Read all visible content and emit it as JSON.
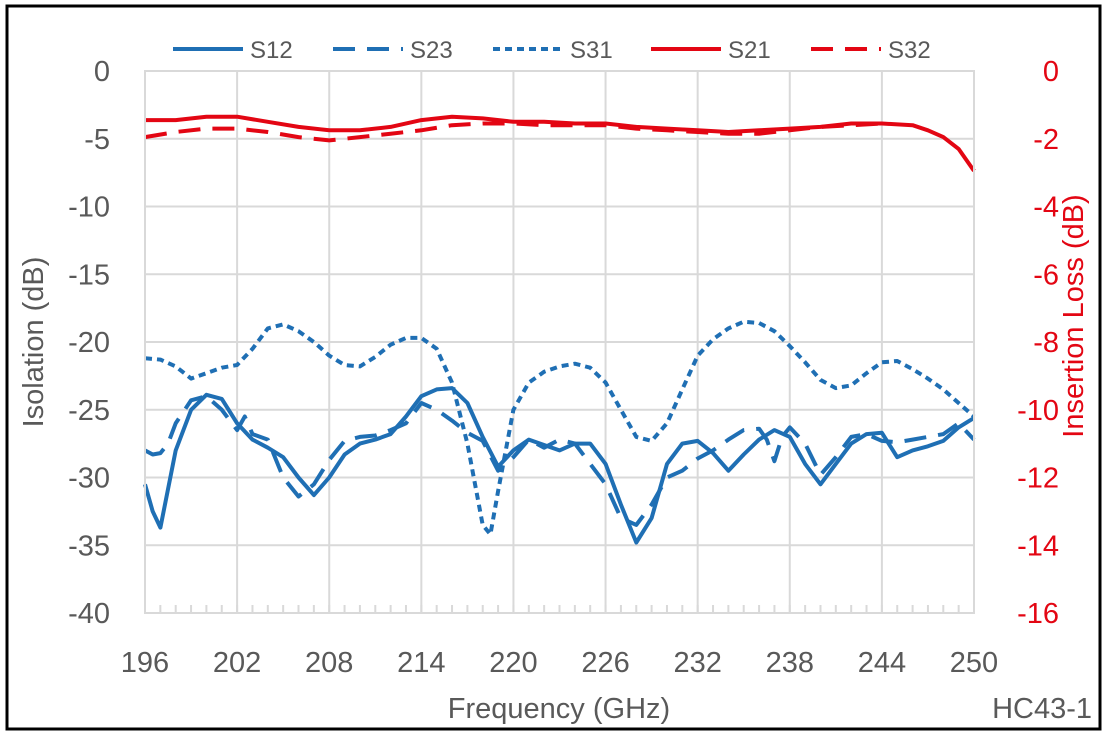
{
  "chart_data": {
    "type": "line",
    "xlabel": "Frequency (GHz)",
    "ylabel_left": "Isolation (dB)",
    "ylabel_right": "Insertion Loss (dB)",
    "figure_id": "HC43-1",
    "xlim": [
      196,
      250
    ],
    "ylim_left": [
      -40,
      0
    ],
    "ylim_right": [
      -16,
      0
    ],
    "x_ticks": [
      196,
      202,
      208,
      214,
      220,
      226,
      232,
      238,
      244,
      250
    ],
    "y_ticks_left": [
      0,
      -5,
      -10,
      -15,
      -20,
      -25,
      -30,
      -35,
      -40
    ],
    "y_ticks_right": [
      0,
      -2,
      -4,
      -6,
      -8,
      -10,
      -12,
      -14,
      -16
    ],
    "grid": true,
    "legend_position": "top",
    "colors": {
      "isolation": "#1f6fb4",
      "insertion_loss": "#e30613",
      "text": "#595959",
      "grid": "#d9d9d9"
    },
    "series": [
      {
        "name": "S12",
        "axis": "left",
        "dash": "solid",
        "x": [
          196,
          196.5,
          197,
          198,
          199,
          200,
          201,
          202,
          203,
          204,
          205,
          206,
          207,
          208,
          209,
          210,
          211,
          212,
          213,
          214,
          215,
          216,
          217,
          218,
          219,
          220,
          221,
          222,
          223,
          224,
          225,
          226,
          227,
          228,
          229,
          230,
          231,
          232,
          233,
          234,
          235,
          236,
          237,
          238,
          239,
          240,
          241,
          242,
          243,
          244,
          245,
          246,
          247,
          248,
          249,
          250
        ],
        "y": [
          -30.5,
          -32.5,
          -33.7,
          -28,
          -25,
          -23.9,
          -24.2,
          -26,
          -27.2,
          -27.8,
          -28.5,
          -30,
          -31.3,
          -30,
          -28.3,
          -27.5,
          -27.2,
          -26.8,
          -25.5,
          -24,
          -23.5,
          -23.4,
          -24.5,
          -27,
          -29.2,
          -28,
          -27.2,
          -27.6,
          -28,
          -27.5,
          -27.5,
          -29,
          -32,
          -34.8,
          -33,
          -29,
          -27.5,
          -27.3,
          -28.2,
          -29.5,
          -28.3,
          -27.2,
          -26.5,
          -27,
          -29,
          -30.5,
          -29,
          -27.5,
          -26.8,
          -26.7,
          -28.5,
          -28,
          -27.7,
          -27.3,
          -26.3,
          -25.6
        ]
      },
      {
        "name": "S23",
        "axis": "left",
        "dash": "long",
        "x": [
          196,
          196.5,
          197,
          197.5,
          198,
          199,
          200,
          201,
          202,
          202.5,
          203,
          204,
          205,
          206,
          207,
          208,
          209,
          210,
          211,
          212,
          213,
          214,
          215,
          216,
          217,
          218,
          219,
          220,
          221,
          222,
          223,
          224,
          225,
          226,
          227,
          228,
          229,
          230,
          231,
          232,
          233,
          234,
          235,
          236,
          236.5,
          237,
          237.5,
          238,
          239,
          240,
          241,
          242,
          243,
          244,
          245,
          246,
          247,
          248,
          249,
          250
        ],
        "y": [
          -28,
          -28.3,
          -28.2,
          -27.5,
          -26,
          -24.3,
          -24,
          -25,
          -26.5,
          -25.5,
          -26.8,
          -27.2,
          -30,
          -31.4,
          -30.5,
          -28.7,
          -27.3,
          -27,
          -26.9,
          -26.5,
          -26,
          -24.5,
          -25,
          -25.8,
          -26.7,
          -27.3,
          -29.5,
          -28.5,
          -27.2,
          -27.8,
          -27.2,
          -27.5,
          -29,
          -30.5,
          -33,
          -33.5,
          -32,
          -30,
          -29.5,
          -28.6,
          -28,
          -27.2,
          -26.5,
          -26.4,
          -27.2,
          -28.8,
          -27,
          -26.3,
          -27.5,
          -29.8,
          -28.5,
          -27,
          -26.8,
          -27.3,
          -27.4,
          -27.2,
          -27,
          -26.8,
          -26,
          -27.2
        ]
      },
      {
        "name": "S31",
        "axis": "left",
        "dash": "short",
        "x": [
          196,
          197,
          198,
          199,
          200,
          201,
          202,
          203,
          204,
          205,
          206,
          207,
          208,
          209,
          210,
          211,
          212,
          213,
          214,
          215,
          216,
          217,
          218,
          218.5,
          219,
          220,
          221,
          222,
          223,
          224,
          225,
          226,
          227,
          228,
          229,
          230,
          231,
          232,
          233,
          234,
          235,
          236,
          237,
          238,
          239,
          240,
          241,
          242,
          243,
          244,
          245,
          246,
          247,
          248,
          249,
          250
        ],
        "y": [
          -21.2,
          -21.3,
          -21.8,
          -22.7,
          -22.3,
          -21.9,
          -21.7,
          -20.5,
          -19,
          -18.7,
          -19.2,
          -20,
          -21,
          -21.7,
          -21.8,
          -21.1,
          -20.2,
          -19.7,
          -19.7,
          -20.5,
          -23,
          -27.5,
          -33.5,
          -34.2,
          -31,
          -25,
          -23,
          -22.2,
          -21.8,
          -21.6,
          -21.9,
          -23,
          -25,
          -27,
          -27.3,
          -26,
          -23.5,
          -21,
          -19.8,
          -19,
          -18.5,
          -18.6,
          -19.2,
          -20.3,
          -21.5,
          -22.8,
          -23.4,
          -23.2,
          -22.3,
          -21.5,
          -21.4,
          -22,
          -22.7,
          -23.5,
          -24.5,
          -25.5
        ]
      },
      {
        "name": "S21",
        "axis": "right",
        "dash": "solid",
        "x": [
          196,
          198,
          200,
          202,
          204,
          206,
          208,
          210,
          212,
          214,
          216,
          218,
          220,
          222,
          224,
          226,
          228,
          230,
          232,
          234,
          236,
          238,
          240,
          242,
          244,
          246,
          247,
          248,
          249,
          250
        ],
        "y": [
          -1.45,
          -1.45,
          -1.35,
          -1.35,
          -1.5,
          -1.65,
          -1.75,
          -1.75,
          -1.65,
          -1.45,
          -1.35,
          -1.4,
          -1.5,
          -1.5,
          -1.55,
          -1.55,
          -1.65,
          -1.7,
          -1.75,
          -1.8,
          -1.75,
          -1.7,
          -1.65,
          -1.55,
          -1.55,
          -1.6,
          -1.75,
          -1.95,
          -2.3,
          -2.95
        ]
      },
      {
        "name": "S32",
        "axis": "right",
        "dash": "long",
        "x": [
          196,
          198,
          200,
          202,
          204,
          206,
          208,
          210,
          212,
          214,
          216,
          218,
          220,
          222,
          224,
          226,
          228,
          230,
          232,
          234,
          236,
          238,
          240,
          242,
          244
        ],
        "y": [
          -1.95,
          -1.8,
          -1.7,
          -1.7,
          -1.8,
          -1.95,
          -2.05,
          -1.95,
          -1.85,
          -1.75,
          -1.6,
          -1.55,
          -1.55,
          -1.6,
          -1.6,
          -1.6,
          -1.7,
          -1.75,
          -1.8,
          -1.85,
          -1.85,
          -1.75,
          -1.65,
          -1.6,
          -1.55
        ]
      }
    ]
  }
}
